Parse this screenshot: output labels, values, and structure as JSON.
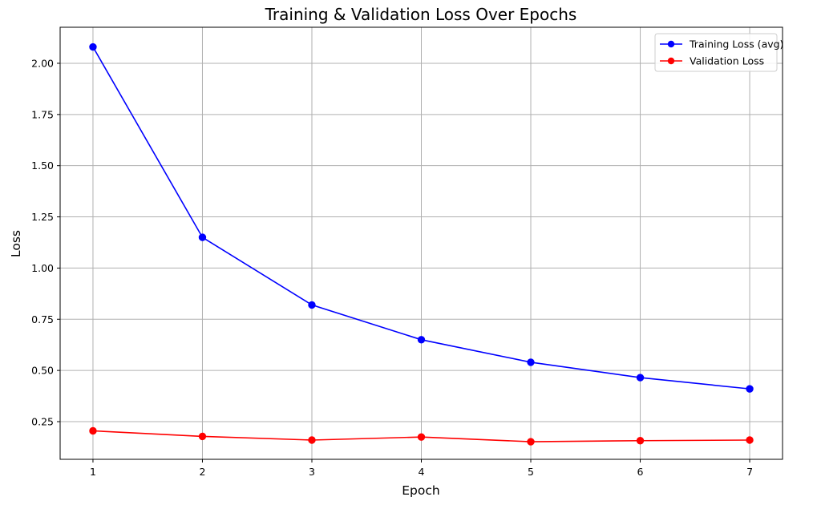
{
  "chart_data": {
    "type": "line",
    "title": "Training & Validation Loss Over Epochs",
    "xlabel": "Epoch",
    "ylabel": "Loss",
    "x": [
      1,
      2,
      3,
      4,
      5,
      6,
      7
    ],
    "xticks": [
      1,
      2,
      3,
      4,
      5,
      6,
      7
    ],
    "xtick_labels": [
      "1",
      "2",
      "3",
      "4",
      "5",
      "6",
      "7"
    ],
    "xlim": [
      0.7,
      7.3
    ],
    "yticks": [
      0.25,
      0.5,
      0.75,
      1.0,
      1.25,
      1.5,
      1.75,
      2.0
    ],
    "ytick_labels": [
      "0.25",
      "0.50",
      "0.75",
      "1.00",
      "1.25",
      "1.50",
      "1.75",
      "2.00"
    ],
    "ylim": [
      0.066,
      2.176
    ],
    "grid": true,
    "legend_position": "top-right",
    "series": [
      {
        "name": "Training Loss (avg)",
        "color": "#0000ff",
        "marker": "circle",
        "values": [
          2.08,
          1.15,
          0.82,
          0.65,
          0.54,
          0.465,
          0.41
        ]
      },
      {
        "name": "Validation Loss",
        "color": "#ff0000",
        "marker": "circle",
        "values": [
          0.205,
          0.178,
          0.16,
          0.175,
          0.152,
          0.157,
          0.16
        ]
      }
    ]
  }
}
